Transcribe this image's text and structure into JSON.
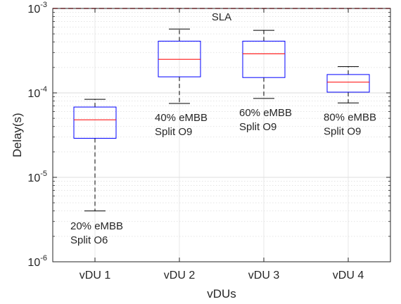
{
  "chart_data": {
    "type": "box",
    "title": "",
    "xlabel": "vDUs",
    "ylabel": "Delay(s)",
    "yscale": "log",
    "ylim": [
      1e-06,
      0.001
    ],
    "grid": true,
    "categories": [
      "vDU 1",
      "vDU 2",
      "vDU 3",
      "vDU 4"
    ],
    "boxes": [
      {
        "category": "vDU 1",
        "whisker_low": 4e-06,
        "q1": 2.9e-05,
        "median": 4.8e-05,
        "q3": 6.8e-05,
        "whisker_high": 8.4e-05
      },
      {
        "category": "vDU 2",
        "whisker_low": 7.5e-05,
        "q1": 0.000155,
        "median": 0.00025,
        "q3": 0.00041,
        "whisker_high": 0.00057
      },
      {
        "category": "vDU 3",
        "whisker_low": 8.6e-05,
        "q1": 0.000152,
        "median": 0.00029,
        "q3": 0.00041,
        "whisker_high": 0.00055
      },
      {
        "category": "vDU 4",
        "whisker_low": 7.6e-05,
        "q1": 0.000102,
        "median": 0.000134,
        "q3": 0.000165,
        "whisker_high": 0.000205
      }
    ],
    "reference_line": {
      "label": "SLA",
      "value": 0.001,
      "color": "#e0202a"
    },
    "annotations": [
      {
        "category": "vDU 1",
        "line1": "20% eMBB",
        "line2": "Split O6"
      },
      {
        "category": "vDU 2",
        "line1": "40% eMBB",
        "line2": "Split O9"
      },
      {
        "category": "vDU 3",
        "line1": "60% eMBB",
        "line2": "Split O9"
      },
      {
        "category": "vDU 4",
        "line1": "80% eMBB",
        "line2": "Split O9"
      }
    ],
    "colors": {
      "box": "#0000ff",
      "median": "#ff0000",
      "whisker": "#000000",
      "sla": "#e0202a"
    }
  }
}
